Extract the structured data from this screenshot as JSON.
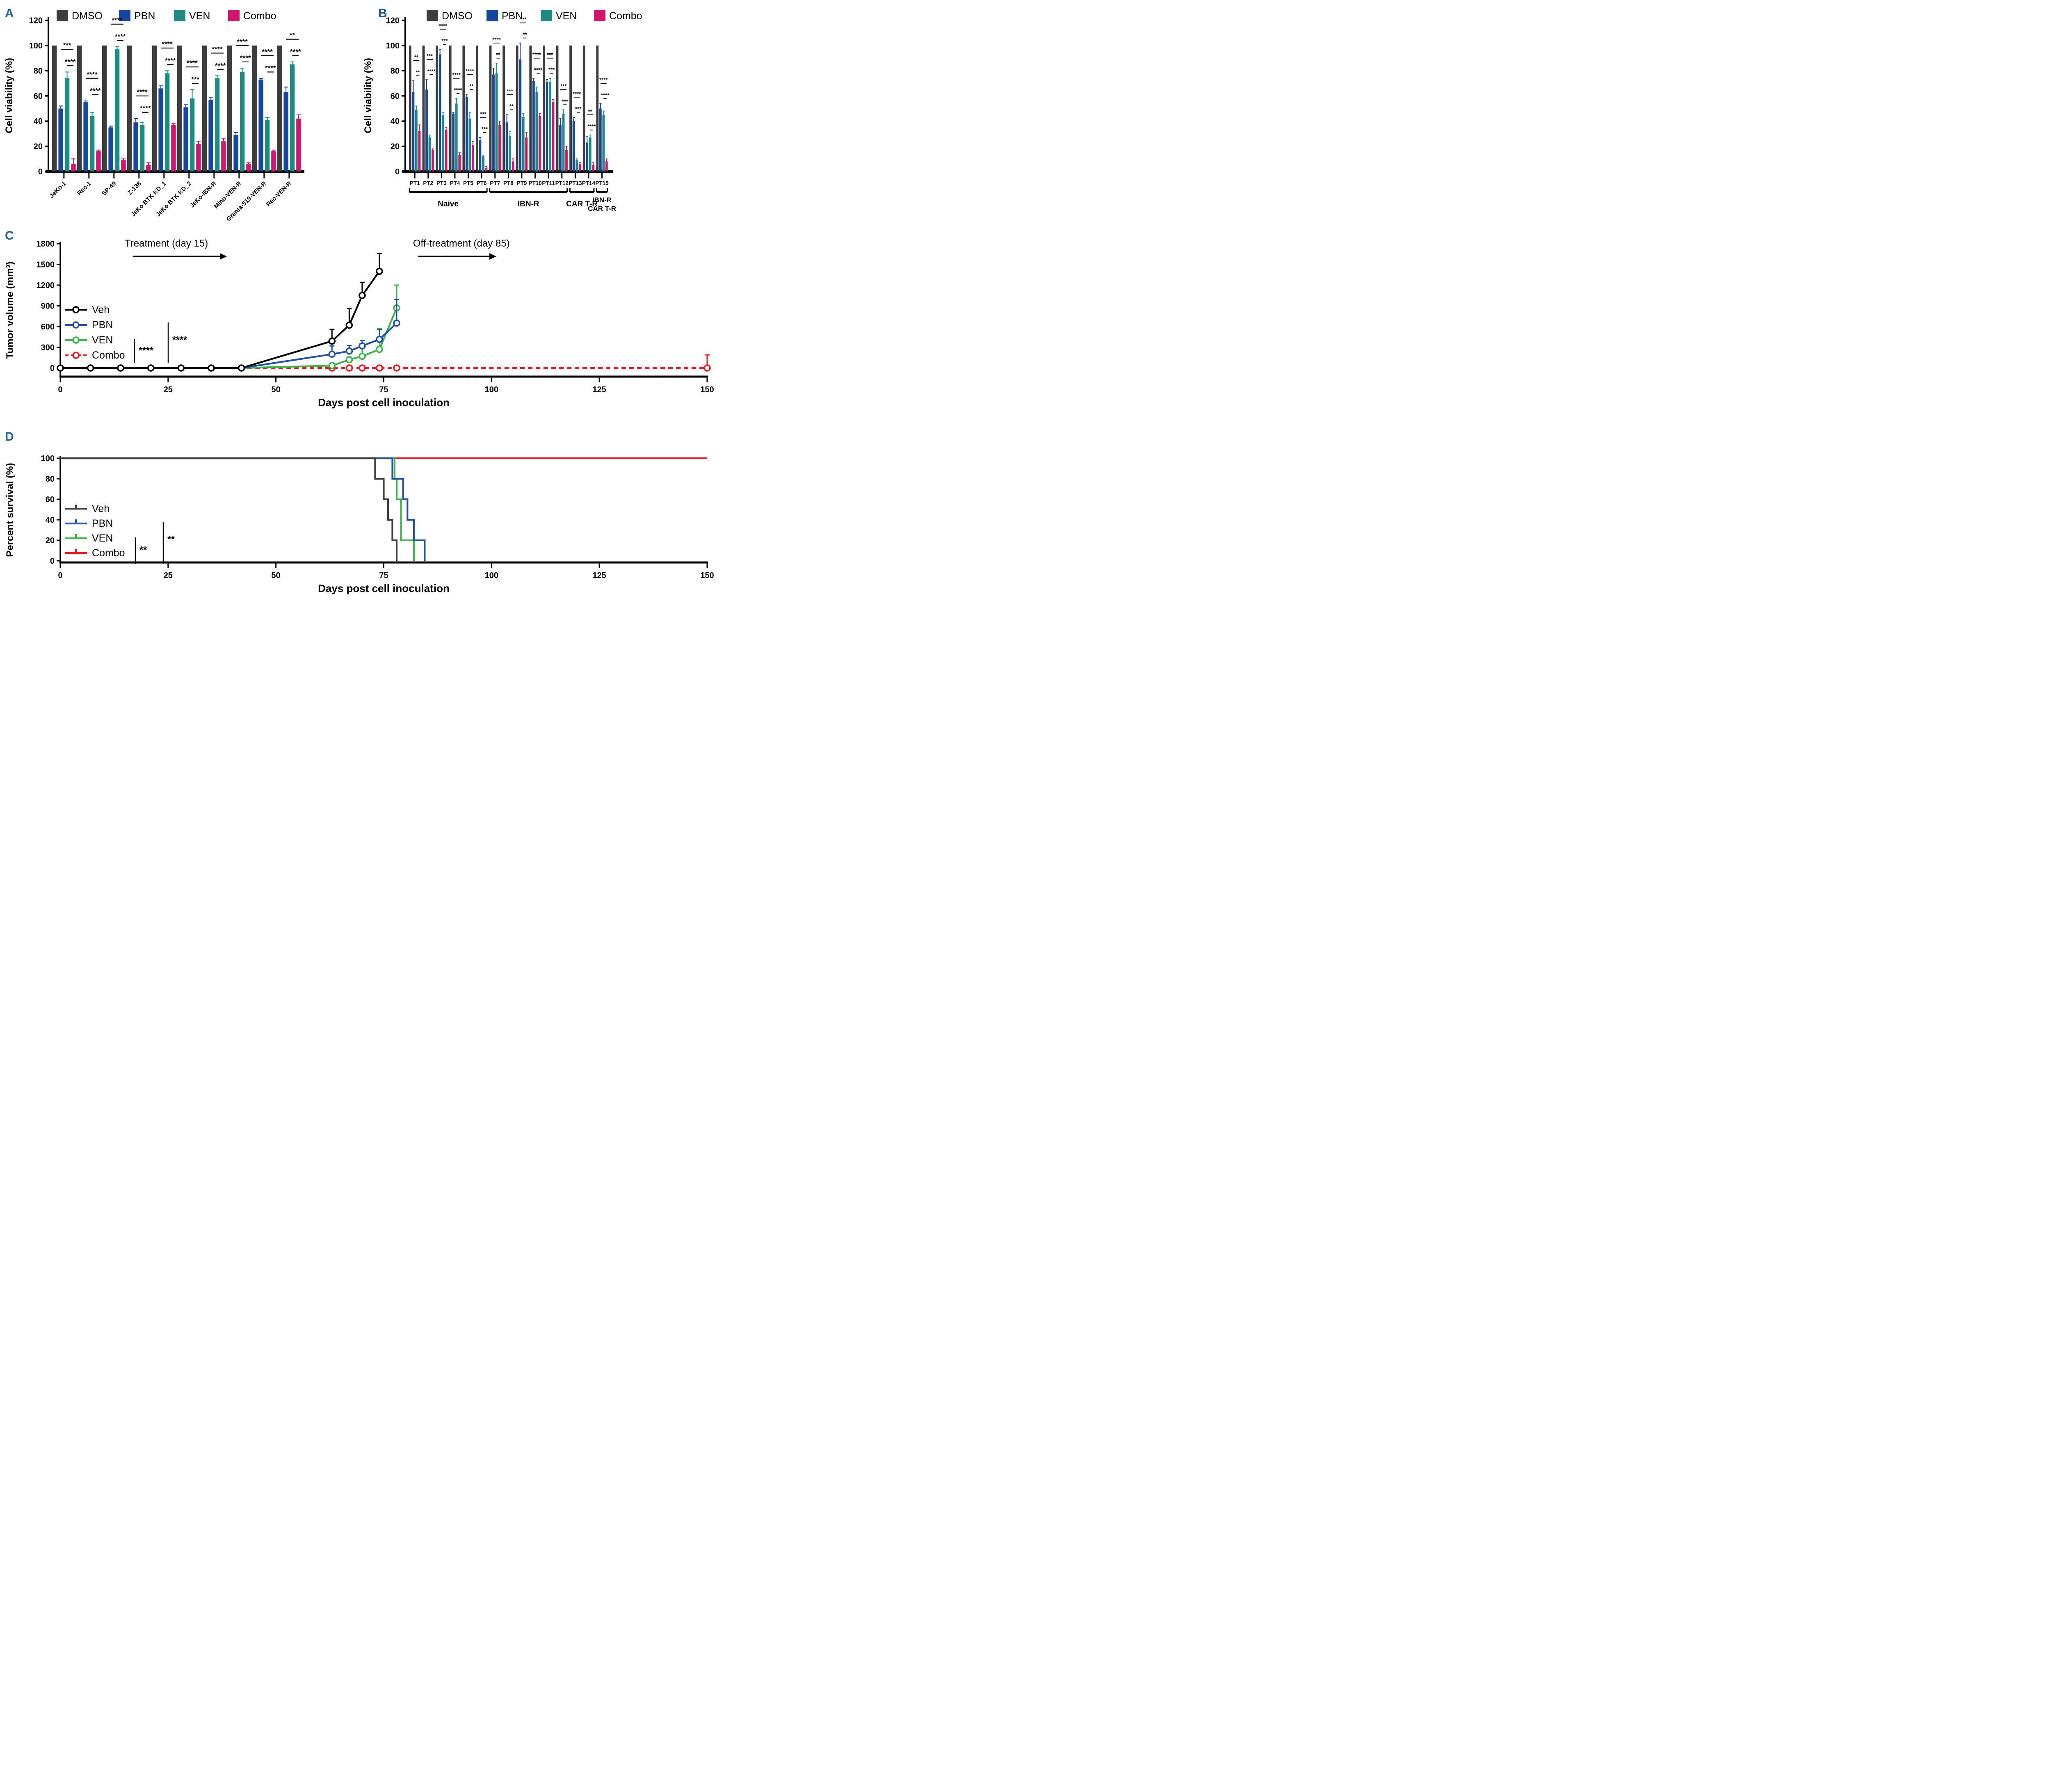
{
  "figure": {
    "background": "#ffffff"
  },
  "panel_letters_color": "#1e5f94",
  "chart_data": [
    {
      "panel": "A",
      "type": "bar",
      "ylabel": "Cell viability (%)",
      "ylim": [
        0,
        120
      ],
      "ytick_step": 20,
      "legend": [
        {
          "label": "DMSO",
          "color": "#3d3d3d"
        },
        {
          "label": "PBN",
          "color": "#14479f"
        },
        {
          "label": "VEN",
          "color": "#1e8a80"
        },
        {
          "label": "Combo",
          "color": "#d2156e"
        }
      ],
      "categories": [
        "JeKo-1",
        "Rec-1",
        "SP-49",
        "Z-138",
        "JeKo BTK KD_1",
        "JeKo BTK KD_2",
        "JeKo-IBN-R",
        "Mino-VEN-R",
        "Granta-519-VEN-R",
        "Rec-VEN-R"
      ],
      "series": [
        {
          "name": "DMSO",
          "color": "#3d3d3d",
          "values": [
            100,
            100,
            100,
            100,
            100,
            100,
            100,
            100,
            100,
            100
          ],
          "errors": [
            0,
            0,
            0,
            0,
            0,
            0,
            0,
            0,
            0,
            0
          ]
        },
        {
          "name": "PBN",
          "color": "#14479f",
          "values": [
            50,
            55,
            35,
            39,
            66,
            51,
            57,
            29,
            73,
            63
          ],
          "errors": [
            2,
            1,
            1,
            3,
            2,
            2,
            2,
            2,
            1,
            4
          ]
        },
        {
          "name": "VEN",
          "color": "#1e8a80",
          "values": [
            74,
            44,
            97,
            37,
            78,
            58,
            74,
            79,
            41,
            85
          ],
          "errors": [
            5,
            3,
            2,
            2,
            2,
            7,
            2,
            3,
            2,
            2
          ]
        },
        {
          "name": "Combo",
          "color": "#d2156e",
          "values": [
            6,
            16,
            9,
            5,
            37,
            22,
            24,
            6,
            16,
            42
          ],
          "errors": [
            4,
            1,
            1,
            2,
            1,
            2,
            2,
            1,
            1,
            3
          ]
        }
      ],
      "significance": [
        [
          "***",
          "****"
        ],
        [
          "****",
          "****"
        ],
        [
          "****",
          "****"
        ],
        [
          "****",
          "****"
        ],
        [
          "****",
          "****"
        ],
        [
          "****",
          "***"
        ],
        [
          "****",
          "****"
        ],
        [
          "****",
          "****"
        ],
        [
          "****",
          "****"
        ],
        [
          "**",
          "****"
        ]
      ]
    },
    {
      "panel": "B",
      "type": "bar",
      "ylabel": "Cell viability (%)",
      "ylim": [
        0,
        120
      ],
      "ytick_step": 20,
      "legend": [
        {
          "label": "DMSO",
          "color": "#3d3d3d"
        },
        {
          "label": "PBN",
          "color": "#14479f"
        },
        {
          "label": "VEN",
          "color": "#1e8a80"
        },
        {
          "label": "Combo",
          "color": "#d2156e"
        }
      ],
      "categories": [
        "PT1",
        "PT2",
        "PT3",
        "PT4",
        "PT5",
        "PT6",
        "PT7",
        "PT8",
        "PT9",
        "PT10",
        "PT11",
        "PT12",
        "PT13",
        "PT14",
        "PT15"
      ],
      "series": [
        {
          "name": "DMSO",
          "color": "#3d3d3d",
          "values": [
            100,
            100,
            100,
            100,
            100,
            100,
            100,
            100,
            100,
            100,
            100,
            100,
            100,
            100,
            100
          ],
          "errors": [
            0,
            0,
            0,
            0,
            0,
            0,
            0,
            0,
            0,
            0,
            0,
            0,
            0,
            0,
            0
          ]
        },
        {
          "name": "PBN",
          "color": "#14479f",
          "values": [
            63,
            65,
            93,
            46,
            59,
            25,
            77,
            39,
            89,
            72,
            71,
            37,
            40,
            23,
            50
          ],
          "errors": [
            9,
            8,
            4,
            1,
            2,
            2,
            5,
            6,
            13,
            2,
            2,
            5,
            3,
            5,
            4
          ]
        },
        {
          "name": "VEN",
          "color": "#1e8a80",
          "values": [
            49,
            27,
            45,
            54,
            42,
            12,
            78,
            28,
            43,
            63,
            71,
            46,
            9,
            27,
            45
          ],
          "errors": [
            3,
            2,
            2,
            4,
            5,
            1,
            8,
            4,
            3,
            4,
            3,
            3,
            1,
            2,
            3
          ]
        },
        {
          "name": "Combo",
          "color": "#d2156e",
          "values": [
            32,
            17,
            33,
            13,
            21,
            3,
            37,
            8,
            27,
            44,
            55,
            17,
            6,
            5,
            8
          ],
          "errors": [
            5,
            1,
            2,
            2,
            3,
            1,
            3,
            2,
            4,
            2,
            2,
            3,
            1,
            2,
            2
          ]
        }
      ],
      "significance": [
        [
          "**",
          "**"
        ],
        [
          "***",
          "****"
        ],
        [
          "****",
          "***"
        ],
        [
          "****",
          "****"
        ],
        [
          "****",
          "**"
        ],
        [
          "***",
          "***"
        ],
        [
          "****",
          "**"
        ],
        [
          "***",
          "**"
        ],
        [
          "***",
          "**"
        ],
        [
          "****",
          "****"
        ],
        [
          "***",
          "***"
        ],
        [
          "***",
          "***"
        ],
        [
          "****",
          "***"
        ],
        [
          "**",
          "****"
        ],
        [
          "****",
          "****"
        ]
      ],
      "cohorts": [
        {
          "label": "Naive",
          "start": 0,
          "end": 5
        },
        {
          "label": "IBN-R",
          "start": 6,
          "end": 11
        },
        {
          "label": "CAR T-R",
          "start": 12,
          "end": 13
        },
        {
          "label": "IBN-R",
          "label2": "CAR T-R",
          "start": 14,
          "end": 14
        }
      ]
    },
    {
      "panel": "C",
      "type": "line",
      "xlabel": "Days post cell inoculation",
      "ylabel": "Tumor volume (mm³)",
      "xlim": [
        0,
        150
      ],
      "xtick_step": 25,
      "ylim": [
        0,
        1800
      ],
      "ytick_step": 300,
      "annotations": [
        {
          "text": "Treatment (day 15)",
          "text_day": 24.6,
          "arrow_days": [
            16.8,
            37
          ]
        },
        {
          "text": "Off-treatment (day 85)",
          "text_day": 93,
          "arrow_days": [
            83,
            99.5
          ]
        }
      ],
      "legend_sig": [
        "****",
        "****"
      ],
      "series": [
        {
          "name": "Veh",
          "color": "#000000",
          "dash": false,
          "marker_from": 0,
          "x": [
            0,
            7,
            14,
            21,
            28,
            35,
            42,
            63,
            67,
            70,
            74
          ],
          "y": [
            0,
            0,
            0,
            0,
            0,
            0,
            0,
            390,
            620,
            1050,
            1400
          ],
          "err": [
            0,
            0,
            0,
            0,
            0,
            0,
            0,
            170,
            240,
            190,
            260
          ]
        },
        {
          "name": "PBN",
          "color": "#2151a6",
          "dash": false,
          "marker_from": 7,
          "x": [
            0,
            7,
            14,
            21,
            28,
            35,
            42,
            63,
            67,
            70,
            74,
            78
          ],
          "y": [
            0,
            0,
            0,
            0,
            0,
            0,
            0,
            200,
            245,
            320,
            415,
            650
          ],
          "err": [
            0,
            0,
            0,
            0,
            0,
            0,
            0,
            120,
            80,
            80,
            140,
            340
          ]
        },
        {
          "name": "VEN",
          "color": "#3ab54a",
          "dash": false,
          "marker_from": 7,
          "x": [
            0,
            7,
            14,
            21,
            28,
            35,
            42,
            63,
            67,
            70,
            74,
            78
          ],
          "y": [
            0,
            0,
            0,
            0,
            0,
            0,
            0,
            35,
            120,
            170,
            270,
            870
          ],
          "err": [
            0,
            0,
            0,
            0,
            0,
            0,
            0,
            0,
            0,
            150,
            300,
            330
          ]
        },
        {
          "name": "Combo",
          "color": "#ed1c24",
          "dash": true,
          "marker_from": 7,
          "x": [
            0,
            7,
            14,
            21,
            28,
            35,
            42,
            63,
            67,
            70,
            74,
            78,
            150
          ],
          "y": [
            0,
            0,
            0,
            0,
            0,
            0,
            0,
            0,
            0,
            0,
            0,
            0,
            0
          ],
          "err": [
            0,
            0,
            0,
            0,
            0,
            0,
            0,
            0,
            0,
            0,
            0,
            0,
            190
          ]
        }
      ]
    },
    {
      "panel": "D",
      "type": "km",
      "xlabel": "Days post cell inoculation",
      "ylabel": "Percent survival (%)",
      "xlim": [
        0,
        150
      ],
      "xtick_step": 25,
      "ylim": [
        0,
        100
      ],
      "ytick_step": 20,
      "legend_sig": [
        "**",
        "**"
      ],
      "series": [
        {
          "name": "Veh",
          "color": "#3f3f3f",
          "steps": [
            [
              0,
              100
            ],
            [
              73,
              100
            ],
            [
              73,
              80
            ],
            [
              75,
              80
            ],
            [
              75,
              60
            ],
            [
              76,
              60
            ],
            [
              76,
              40
            ],
            [
              77,
              40
            ],
            [
              77,
              20
            ],
            [
              78,
              20
            ],
            [
              78,
              0
            ]
          ]
        },
        {
          "name": "PBN",
          "color": "#2151a6",
          "steps": [
            [
              0,
              100
            ],
            [
              77,
              100
            ],
            [
              77,
              80
            ],
            [
              79.5,
              80
            ],
            [
              79.5,
              60
            ],
            [
              80.5,
              60
            ],
            [
              80.5,
              40
            ],
            [
              82,
              40
            ],
            [
              82,
              20
            ],
            [
              84.5,
              20
            ],
            [
              84.5,
              0
            ]
          ]
        },
        {
          "name": "VEN",
          "color": "#3ab54a",
          "steps": [
            [
              0,
              100
            ],
            [
              77.5,
              100
            ],
            [
              77.5,
              80
            ],
            [
              78,
              80
            ],
            [
              78,
              60
            ],
            [
              79,
              60
            ],
            [
              79,
              20
            ],
            [
              82,
              20
            ],
            [
              82,
              0
            ]
          ]
        },
        {
          "name": "Combo",
          "color": "#ed1c24",
          "steps": [
            [
              0,
              100
            ],
            [
              150,
              100
            ]
          ]
        }
      ]
    }
  ]
}
